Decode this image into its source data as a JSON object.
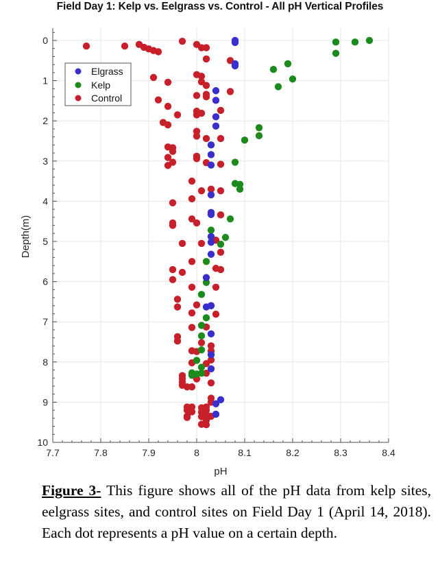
{
  "figure": {
    "caption_label": "Figure 3-",
    "caption_text": " This figure shows all of the pH data from kelp sites, eelgrass sites, and control sites on Field Day 1 (April 14, 2018). Each dot represents a pH value on a certain depth."
  },
  "chart_data": {
    "type": "scatter",
    "title": "Field Day 1: Kelp vs. Eelgrass vs. Control - All pH Vertical Profiles",
    "xlabel": "pH",
    "ylabel": "Depth(m)",
    "xlim": [
      7.7,
      8.4
    ],
    "ylim": [
      -0.3,
      10
    ],
    "y_reversed": true,
    "x_ticks": [
      7.7,
      7.8,
      7.9,
      8.0,
      8.1,
      8.2,
      8.3,
      8.4
    ],
    "x_tick_labels": [
      "7.7",
      "7.8",
      "7.9",
      "8",
      "8.1",
      "8.2",
      "8.3",
      "8.4"
    ],
    "y_ticks": [
      0,
      1,
      2,
      3,
      4,
      5,
      6,
      7,
      8,
      9,
      10
    ],
    "y_tick_labels": [
      "0",
      "1",
      "2",
      "3",
      "4",
      "5",
      "6",
      "7",
      "8",
      "9",
      "10"
    ],
    "grid": true,
    "legend_position": "top-left",
    "series": [
      {
        "name": "Elgrass",
        "color": "#3a2fcc",
        "points": [
          [
            8.08,
            0.0
          ],
          [
            8.08,
            0.05
          ],
          [
            8.08,
            0.58
          ],
          [
            8.08,
            0.63
          ],
          [
            8.04,
            1.25
          ],
          [
            8.04,
            1.49
          ],
          [
            8.04,
            1.9
          ],
          [
            8.04,
            2.13
          ],
          [
            8.03,
            2.6
          ],
          [
            8.03,
            2.84
          ],
          [
            8.03,
            3.1
          ],
          [
            8.03,
            3.84
          ],
          [
            8.03,
            4.28
          ],
          [
            8.03,
            4.33
          ],
          [
            8.03,
            4.88
          ],
          [
            8.03,
            5.02
          ],
          [
            8.03,
            5.32
          ],
          [
            8.02,
            5.9
          ],
          [
            8.02,
            6.63
          ],
          [
            8.03,
            6.6
          ],
          [
            8.03,
            7.3
          ],
          [
            8.03,
            7.82
          ],
          [
            8.03,
            8.17
          ],
          [
            8.05,
            8.94
          ],
          [
            8.04,
            9.04
          ],
          [
            8.04,
            9.3
          ]
        ]
      },
      {
        "name": "Kelp",
        "color": "#1d8a1d",
        "points": [
          [
            8.36,
            0.0
          ],
          [
            8.33,
            0.04
          ],
          [
            8.29,
            0.04
          ],
          [
            8.29,
            0.32
          ],
          [
            8.19,
            0.58
          ],
          [
            8.16,
            0.72
          ],
          [
            8.2,
            0.96
          ],
          [
            8.17,
            1.15
          ],
          [
            8.13,
            2.17
          ],
          [
            8.13,
            2.37
          ],
          [
            8.1,
            2.48
          ],
          [
            8.08,
            3.03
          ],
          [
            8.08,
            3.56
          ],
          [
            8.09,
            3.58
          ],
          [
            8.09,
            3.7
          ],
          [
            8.07,
            4.44
          ],
          [
            8.06,
            4.9
          ],
          [
            8.05,
            5.07
          ],
          [
            8.03,
            4.72
          ],
          [
            8.02,
            5.5
          ],
          [
            8.02,
            6.02
          ],
          [
            8.01,
            6.32
          ],
          [
            8.02,
            6.9
          ],
          [
            8.01,
            7.09
          ],
          [
            8.01,
            7.35
          ],
          [
            8.01,
            7.7
          ],
          [
            8.0,
            7.96
          ],
          [
            8.01,
            8.13
          ],
          [
            8.01,
            8.28
          ],
          [
            8.0,
            8.3
          ],
          [
            7.99,
            8.33
          ],
          [
            7.99,
            8.27
          ]
        ]
      },
      {
        "name": "Control",
        "color": "#c8202a",
        "points": [
          [
            7.77,
            0.14
          ],
          [
            7.85,
            0.14
          ],
          [
            7.88,
            0.1
          ],
          [
            7.89,
            0.17
          ],
          [
            7.9,
            0.21
          ],
          [
            7.91,
            0.25
          ],
          [
            7.92,
            0.28
          ],
          [
            7.97,
            0.02
          ],
          [
            8.0,
            0.1
          ],
          [
            8.01,
            0.18
          ],
          [
            8.02,
            0.18
          ],
          [
            8.02,
            0.46
          ],
          [
            7.91,
            0.92
          ],
          [
            7.94,
            1.04
          ],
          [
            8.0,
            0.85
          ],
          [
            8.01,
            0.89
          ],
          [
            8.01,
            1.03
          ],
          [
            8.02,
            1.12
          ],
          [
            8.07,
            0.5
          ],
          [
            8.07,
            1.27
          ],
          [
            7.92,
            1.48
          ],
          [
            7.94,
            1.64
          ],
          [
            7.96,
            1.85
          ],
          [
            8.0,
            1.37
          ],
          [
            8.02,
            1.4
          ],
          [
            8.02,
            1.34
          ],
          [
            8.0,
            1.76
          ],
          [
            8.01,
            1.81
          ],
          [
            8.0,
            1.85
          ],
          [
            8.05,
            1.74
          ],
          [
            7.93,
            2.04
          ],
          [
            7.94,
            2.1
          ],
          [
            8.0,
            2.26
          ],
          [
            8.0,
            2.38
          ],
          [
            8.02,
            2.44
          ],
          [
            8.05,
            2.44
          ],
          [
            7.94,
            2.65
          ],
          [
            7.95,
            2.67
          ],
          [
            7.95,
            2.76
          ],
          [
            7.94,
            2.91
          ],
          [
            7.95,
            3.03
          ],
          [
            7.94,
            3.11
          ],
          [
            8.0,
            2.88
          ],
          [
            8.0,
            2.94
          ],
          [
            8.02,
            3.04
          ],
          [
            8.05,
            3.08
          ],
          [
            7.99,
            3.5
          ],
          [
            8.01,
            3.74
          ],
          [
            8.03,
            3.7
          ],
          [
            8.05,
            3.74
          ],
          [
            7.95,
            4.04
          ],
          [
            7.99,
            3.94
          ],
          [
            8.03,
            4.32
          ],
          [
            8.05,
            4.34
          ],
          [
            7.95,
            4.54
          ],
          [
            7.95,
            4.6
          ],
          [
            7.99,
            4.44
          ],
          [
            8.0,
            4.54
          ],
          [
            7.97,
            5.05
          ],
          [
            8.01,
            5.05
          ],
          [
            8.04,
            4.97
          ],
          [
            8.05,
            5.27
          ],
          [
            7.99,
            5.5
          ],
          [
            7.95,
            5.7
          ],
          [
            7.97,
            5.77
          ],
          [
            7.95,
            5.95
          ],
          [
            8.04,
            5.67
          ],
          [
            8.05,
            5.7
          ],
          [
            7.99,
            6.14
          ],
          [
            8.04,
            6.14
          ],
          [
            7.96,
            6.44
          ],
          [
            7.96,
            6.63
          ],
          [
            8.0,
            6.58
          ],
          [
            8.03,
            6.6
          ],
          [
            8.04,
            6.81
          ],
          [
            7.99,
            6.78
          ],
          [
            7.99,
            7.14
          ],
          [
            8.02,
            7.13
          ],
          [
            7.96,
            7.37
          ],
          [
            7.96,
            7.48
          ],
          [
            8.01,
            7.52
          ],
          [
            8.03,
            7.6
          ],
          [
            7.99,
            7.72
          ],
          [
            8.0,
            7.74
          ],
          [
            8.03,
            7.73
          ],
          [
            7.99,
            8.02
          ],
          [
            8.02,
            8.04
          ],
          [
            8.03,
            7.95
          ],
          [
            8.02,
            8.28
          ],
          [
            8.0,
            8.42
          ],
          [
            8.03,
            8.52
          ],
          [
            7.97,
            8.34
          ],
          [
            7.97,
            8.42
          ],
          [
            7.97,
            8.5
          ],
          [
            7.97,
            8.58
          ],
          [
            7.98,
            8.62
          ],
          [
            7.99,
            8.62
          ],
          [
            8.03,
            8.9
          ],
          [
            8.03,
            9.0
          ],
          [
            7.98,
            9.12
          ],
          [
            7.99,
            9.12
          ],
          [
            7.98,
            9.2
          ],
          [
            7.99,
            9.24
          ],
          [
            7.98,
            9.35
          ],
          [
            7.98,
            9.38
          ],
          [
            8.01,
            9.14
          ],
          [
            8.02,
            9.12
          ],
          [
            8.01,
            9.25
          ],
          [
            8.02,
            9.2
          ],
          [
            8.02,
            9.3
          ],
          [
            8.03,
            9.35
          ],
          [
            8.01,
            9.36
          ],
          [
            8.02,
            9.45
          ],
          [
            8.01,
            9.55
          ],
          [
            8.02,
            9.56
          ]
        ]
      }
    ]
  }
}
